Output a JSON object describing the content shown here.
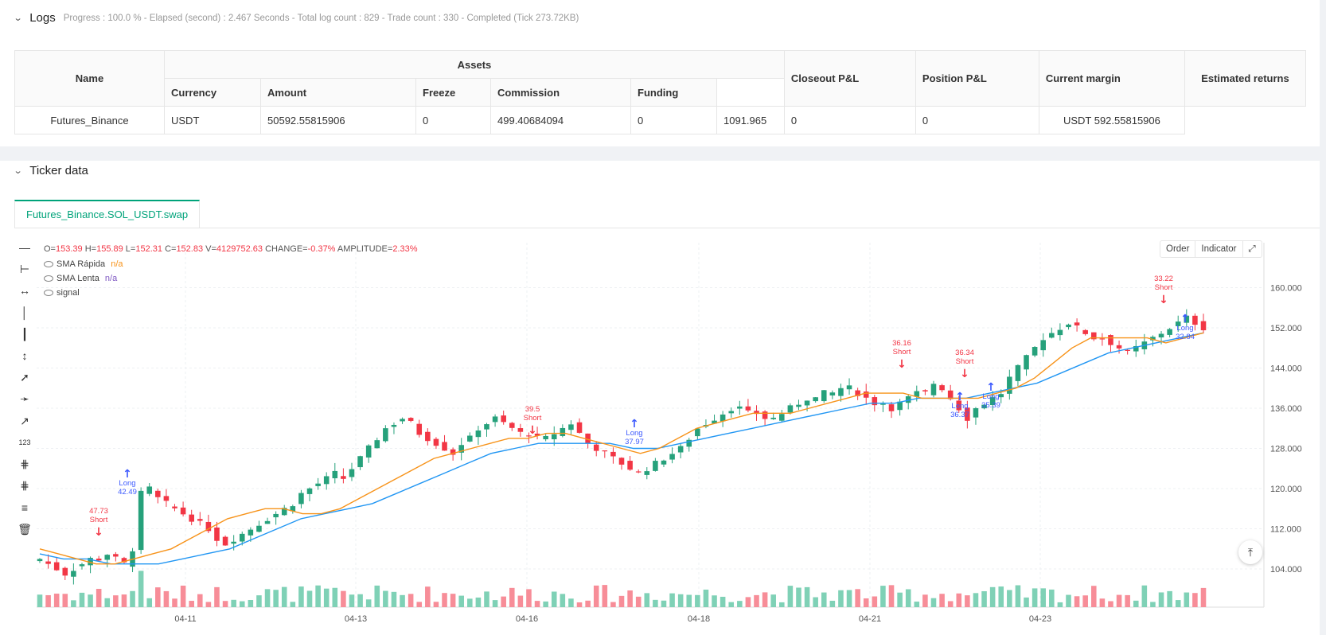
{
  "logs": {
    "title": "Logs",
    "meta": "Progress : 100.0 % - Elapsed (second) : 2.467  Seconds - Total log count : 829 - Trade count : 330 - Completed (Tick 273.72KB)"
  },
  "assets_table": {
    "group_header": "Assets",
    "headers": {
      "name": "Name",
      "currency": "Currency",
      "amount": "Amount",
      "freeze": "Freeze",
      "commission": "Commission",
      "funding": "Funding",
      "closeout": "Closeout P&L",
      "position": "Position P&L",
      "margin": "Current margin",
      "returns": "Estimated returns"
    },
    "row": {
      "name": "Futures_Binance",
      "currency": "USDT",
      "amount": "50592.55815906",
      "freeze": "0",
      "commission": "499.40684094",
      "funding": "0",
      "closeout": "1091.965",
      "position": "0",
      "margin": "0",
      "returns": "USDT 592.55815906"
    }
  },
  "ticker": {
    "title": "Ticker data",
    "tab": "Futures_Binance.SOL_USDT.swap",
    "ohlc": {
      "O_label": "O=",
      "O": "153.39",
      "H_label": "H=",
      "H": "155.89",
      "L_label": "L=",
      "L": "152.31",
      "C_label": "C=",
      "C": "152.83",
      "V_label": "V=",
      "V": "4129752.63",
      "CH_label": "CHANGE=",
      "CH": "-0.37%",
      "A_label": "AMPLITUDE=",
      "A": "2.33%"
    },
    "legend": [
      {
        "name": "SMA Rápida",
        "value": "n/a",
        "color": "#f7931a"
      },
      {
        "name": "SMA Lenta",
        "value": "n/a",
        "color": "#7e57c2"
      },
      {
        "name": "signal",
        "value": ""
      }
    ],
    "buttons": {
      "order": "Order",
      "indicator": "Indicator"
    }
  },
  "chart_data": {
    "type": "candlestick",
    "x_ticks": [
      "04-11",
      "04-13",
      "04-16",
      "04-18",
      "04-21",
      "04-23"
    ],
    "y_ticks": [
      "160.000",
      "152.000",
      "144.000",
      "136.000",
      "128.000",
      "120.000",
      "112.000",
      "104.000"
    ],
    "ylim": [
      98,
      165
    ],
    "colors": {
      "up": "#26a17b",
      "down": "#f23645",
      "sma_fast": "#f7931a",
      "sma_slow": "#2196f3",
      "long": "#3d5afe",
      "short": "#f23645"
    },
    "close_path": [
      106,
      105,
      104,
      103,
      104,
      105,
      106,
      106,
      107,
      106,
      105,
      108,
      119,
      120,
      118,
      117,
      116,
      115,
      114,
      113,
      112,
      110,
      109,
      110,
      111,
      112,
      113,
      114,
      115,
      116,
      117,
      119,
      120,
      121,
      122,
      123,
      122,
      124,
      126,
      128,
      130,
      132,
      133,
      134,
      133,
      131,
      130,
      129,
      128,
      127,
      129,
      130,
      132,
      133,
      134,
      133,
      132,
      131,
      131,
      130,
      130,
      131,
      132,
      133,
      131,
      129,
      128,
      127,
      126,
      125,
      124,
      123,
      124,
      125,
      126,
      127,
      128,
      130,
      132,
      133,
      134,
      135,
      136,
      136,
      135,
      135,
      134,
      134,
      135,
      136,
      137,
      138,
      138,
      139,
      139,
      140,
      140,
      139,
      138,
      137,
      137,
      136,
      137,
      138,
      139,
      139,
      141,
      140,
      138,
      136,
      134,
      136,
      137,
      138,
      139,
      142,
      144,
      146,
      148,
      150,
      151,
      152,
      153,
      152,
      151,
      150,
      150,
      149,
      148,
      147,
      148,
      149,
      150,
      151,
      152,
      153,
      154,
      153,
      152
    ],
    "sma_fast": [
      108,
      107,
      106,
      105,
      105,
      106,
      107,
      108,
      110,
      112,
      114,
      115,
      116,
      116,
      115,
      115,
      116,
      118,
      120,
      122,
      124,
      126,
      127,
      128,
      129,
      130,
      130,
      131,
      131,
      130,
      129,
      128,
      127,
      128,
      130,
      132,
      133,
      134,
      135,
      135,
      135,
      136,
      137,
      138,
      139,
      139,
      139,
      138,
      138,
      138,
      138,
      139,
      140,
      142,
      145,
      148,
      150,
      150,
      150,
      150,
      149,
      150,
      151
    ],
    "sma_slow": [
      107,
      106,
      106,
      105,
      105,
      105,
      106,
      107,
      108,
      110,
      112,
      114,
      115,
      116,
      117,
      119,
      121,
      123,
      125,
      127,
      128,
      129,
      129,
      129,
      129,
      128,
      128,
      129,
      130,
      131,
      132,
      133,
      134,
      135,
      136,
      137,
      137,
      138,
      138,
      138,
      139,
      140,
      141,
      143,
      145,
      147,
      148,
      149,
      150,
      151
    ],
    "signals": [
      {
        "type": "short",
        "label": "Short",
        "value": "47.73"
      },
      {
        "type": "long",
        "label": "Long",
        "value": "42.49"
      },
      {
        "type": "short",
        "label": "Short",
        "value": "39.5"
      },
      {
        "type": "long",
        "label": "Long",
        "value": "37.97"
      },
      {
        "type": "short",
        "label": "Short",
        "value": "36.16"
      },
      {
        "type": "long",
        "label": "Long",
        "value": "36.37"
      },
      {
        "type": "short",
        "label": "Short",
        "value": "36.34"
      },
      {
        "type": "long",
        "label": "Long",
        "value": "35.39"
      },
      {
        "type": "short",
        "label": "Short",
        "value": "33.22"
      },
      {
        "type": "long",
        "label": "Long",
        "value": "32.84"
      }
    ]
  }
}
